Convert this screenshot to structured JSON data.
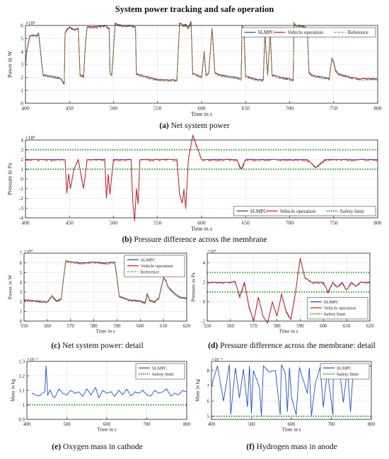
{
  "figure_title": "System power tracking and safe operation",
  "colors": {
    "slmpc": "#1f4fbf",
    "vehicle": "#e31a1c",
    "reference": "#4daf4a",
    "safety": "#2ca02c"
  },
  "captions": [
    {
      "label": "(a)",
      "text": "Net system power"
    },
    {
      "label": "(b)",
      "text": "Pressure difference across the membrane"
    },
    {
      "label": "(c)",
      "text": "Net system power: detail"
    },
    {
      "label": "(d)",
      "text": "Pressure difference across the membrane: detail"
    },
    {
      "label": "(e)",
      "text": "Oxygen mass in cathode"
    },
    {
      "label": "(f)",
      "text": "Hydrogen mass in anode"
    }
  ],
  "chart_data": [
    {
      "id": "a",
      "type": "line",
      "xlabel": "Time in s",
      "ylabel": "Power in W",
      "y_exponent": "×10⁴",
      "xlim": [
        400,
        800
      ],
      "ylim": [
        0,
        6
      ],
      "xticks": [
        400,
        450,
        500,
        550,
        600,
        650,
        700,
        750,
        800
      ],
      "yticks": [
        0,
        1,
        2,
        3,
        4,
        5,
        6
      ],
      "legend": {
        "position": "top-right",
        "orientation": "horizontal"
      },
      "series": [
        {
          "name": "SLMPC",
          "style": "solid"
        },
        {
          "name": "Vehicle operation",
          "style": "solid"
        },
        {
          "name": "Reference",
          "style": "dashed"
        }
      ],
      "x": [
        400,
        402,
        405,
        408,
        412,
        415,
        420,
        430,
        440,
        444,
        445,
        447,
        450,
        455,
        460,
        462,
        466,
        468,
        470,
        480,
        490,
        495,
        496,
        498,
        502,
        504,
        510,
        520,
        525,
        526,
        530,
        535,
        545,
        560,
        572,
        575,
        580,
        582,
        585,
        588,
        590,
        595,
        600,
        603,
        605,
        608,
        612,
        615,
        620,
        630,
        640,
        645,
        646,
        648,
        650,
        655,
        660,
        670,
        672,
        675,
        678,
        680,
        690,
        700,
        704,
        705,
        707,
        715,
        720,
        722,
        725,
        730,
        740,
        745,
        748,
        750,
        752,
        755,
        760,
        770,
        780,
        790,
        800
      ],
      "values": [
        3.0,
        4.3,
        5.2,
        5.3,
        5.2,
        5.4,
        2.2,
        2.1,
        1.95,
        1.5,
        5.4,
        5.7,
        5.9,
        5.7,
        5.8,
        2.2,
        2.1,
        4.5,
        5.9,
        5.9,
        6.0,
        5.8,
        2.3,
        2.2,
        6.2,
        6.1,
        6.0,
        6.0,
        5.9,
        2.3,
        2.2,
        2.1,
        1.9,
        1.8,
        1.8,
        6.2,
        6.0,
        6.1,
        5.8,
        6.3,
        2.3,
        2.2,
        2.0,
        4.0,
        2.2,
        2.3,
        5.8,
        2.4,
        2.2,
        2.1,
        2.0,
        1.9,
        6.0,
        5.8,
        2.1,
        2.0,
        1.9,
        1.8,
        5.4,
        2.2,
        5.4,
        2.2,
        2.0,
        1.9,
        1.8,
        6.2,
        6.0,
        6.0,
        5.8,
        2.4,
        2.2,
        2.1,
        2.0,
        1.9,
        3.5,
        3.2,
        2.6,
        2.3,
        2.2,
        2.0,
        1.9,
        1.9,
        1.9
      ]
    },
    {
      "id": "b",
      "type": "line",
      "xlabel": "Time in s",
      "ylabel": "Pressure in Pa",
      "y_exponent": "×10⁴",
      "xlim": [
        400,
        800
      ],
      "ylim": [
        -4,
        4
      ],
      "xticks": [
        400,
        450,
        500,
        550,
        600,
        650,
        700,
        750,
        800
      ],
      "yticks": [
        -4,
        -3,
        -2,
        -1,
        0,
        1,
        2,
        3,
        4
      ],
      "safety_limit": [
        1,
        3
      ],
      "legend": {
        "position": "bottom-right",
        "orientation": "horizontal"
      },
      "series": [
        {
          "name": "SLMPC",
          "style": "solid"
        },
        {
          "name": "Vehicle operation",
          "style": "solid"
        },
        {
          "name": "Safety limit",
          "style": "dotted"
        }
      ],
      "x": [
        400,
        415,
        445,
        447,
        449,
        451,
        455,
        460,
        466,
        470,
        480,
        490,
        492,
        494,
        496,
        500,
        520,
        522,
        524,
        526,
        528,
        530,
        540,
        550,
        560,
        572,
        575,
        578,
        580,
        582,
        585,
        588,
        590,
        600,
        620,
        640,
        645,
        650,
        670,
        690,
        700,
        720,
        730,
        740,
        750,
        770,
        800
      ],
      "values": [
        2.0,
        2.0,
        2.0,
        -1.5,
        0.5,
        -1.0,
        1.0,
        2.0,
        -1.0,
        2.0,
        2.0,
        2.0,
        -2.0,
        0.5,
        -1.5,
        2.0,
        2.0,
        -2.5,
        -4.2,
        -1.0,
        -2.5,
        2.0,
        2.0,
        2.0,
        2.0,
        2.0,
        -1.5,
        -2.5,
        -1.0,
        -3.0,
        2.0,
        3.5,
        4.5,
        2.0,
        2.0,
        2.0,
        1.0,
        2.0,
        2.0,
        2.0,
        2.0,
        2.0,
        1.2,
        2.0,
        2.0,
        2.0,
        2.0
      ]
    },
    {
      "id": "c",
      "type": "line",
      "xlabel": "Time in s",
      "ylabel": "Power in W",
      "y_exponent": "×10⁴",
      "xlim": [
        550,
        620
      ],
      "ylim": [
        0,
        7
      ],
      "xticks": [
        550,
        560,
        570,
        580,
        590,
        600,
        610,
        620
      ],
      "yticks": [
        0,
        1,
        2,
        3,
        4,
        5,
        6,
        7
      ],
      "legend": {
        "position": "top-right",
        "orientation": "vertical"
      },
      "series": [
        {
          "name": "SLMPC",
          "style": "solid"
        },
        {
          "name": "Vehicle operation",
          "style": "solid"
        },
        {
          "name": "Reference",
          "style": "dashed"
        }
      ],
      "x": [
        550,
        555,
        560,
        562,
        564,
        566,
        567,
        568,
        570,
        575,
        580,
        585,
        589,
        590,
        591,
        593,
        595,
        600,
        602,
        603,
        604,
        606,
        608,
        610,
        611,
        612,
        613,
        615,
        617,
        620
      ],
      "values": [
        2.2,
        2.1,
        2.0,
        2.6,
        2.1,
        2.3,
        4.5,
        6.2,
        6.1,
        6.0,
        6.1,
        6.0,
        6.1,
        4.5,
        2.6,
        2.4,
        2.2,
        2.1,
        1.9,
        2.8,
        2.2,
        2.0,
        2.4,
        4.5,
        4.2,
        3.5,
        3.3,
        2.8,
        2.5,
        2.4
      ]
    },
    {
      "id": "d",
      "type": "line",
      "xlabel": "Time in s",
      "ylabel": "Pressure in Pa",
      "y_exponent": "×10⁴",
      "xlim": [
        550,
        620
      ],
      "ylim": [
        -2,
        5
      ],
      "xticks": [
        550,
        560,
        570,
        580,
        590,
        600,
        610,
        620
      ],
      "yticks": [
        -2,
        0,
        2,
        4
      ],
      "safety_limit": [
        1,
        3
      ],
      "legend": {
        "position": "bottom-right",
        "orientation": "vertical"
      },
      "series": [
        {
          "name": "SLMPC",
          "style": "solid"
        },
        {
          "name": "Vehicle operation",
          "style": "solid"
        },
        {
          "name": "Safety limit",
          "style": "dotted"
        }
      ],
      "x": [
        550,
        555,
        560,
        562,
        564,
        566,
        568,
        570,
        572,
        574,
        576,
        578,
        580,
        582,
        584,
        586,
        588,
        590,
        592,
        595,
        600,
        602,
        604,
        606,
        608,
        610,
        612,
        614,
        616,
        620
      ],
      "values": [
        2.0,
        2.0,
        2.0,
        2.1,
        0.5,
        2.0,
        -0.5,
        -2.0,
        0.5,
        -1.5,
        -2.2,
        0.0,
        -1.5,
        0.8,
        -1.0,
        -1.8,
        1.0,
        4.5,
        2.5,
        2.0,
        2.0,
        1.0,
        2.0,
        1.5,
        2.0,
        1.2,
        2.0,
        1.6,
        2.0,
        2.0
      ]
    },
    {
      "id": "e",
      "type": "line",
      "xlabel": "Time in s",
      "ylabel": "Mass in kg",
      "y_exponent": "×10⁻³",
      "xlim": [
        400,
        800
      ],
      "ylim": [
        0.9,
        1.3
      ],
      "xticks": [
        400,
        500,
        600,
        700,
        800
      ],
      "yticks": [
        0.9,
        1.0,
        1.1,
        1.2,
        1.3
      ],
      "safety_limit": [
        1.0
      ],
      "legend": {
        "position": "top-right",
        "orientation": "vertical"
      },
      "series": [
        {
          "name": "SLMPC",
          "style": "solid"
        },
        {
          "name": "Safety limit",
          "style": "dotted"
        }
      ],
      "x": [
        412,
        430,
        445,
        448,
        452,
        458,
        465,
        470,
        480,
        490,
        500,
        510,
        520,
        530,
        540,
        550,
        560,
        572,
        580,
        590,
        600,
        610,
        620,
        630,
        640,
        650,
        660,
        670,
        680,
        690,
        700,
        710,
        720,
        730,
        740,
        750,
        760,
        770,
        780,
        790,
        798
      ],
      "values": [
        1.08,
        1.06,
        1.09,
        1.27,
        1.07,
        1.1,
        1.06,
        1.05,
        1.11,
        1.08,
        1.07,
        1.1,
        1.08,
        1.09,
        1.06,
        1.11,
        1.07,
        1.12,
        1.05,
        1.1,
        1.08,
        1.09,
        1.06,
        1.1,
        1.07,
        1.11,
        1.06,
        1.09,
        1.08,
        1.1,
        1.07,
        1.06,
        1.1,
        1.08,
        1.09,
        1.11,
        1.06,
        1.08,
        1.07,
        1.1,
        1.09
      ]
    },
    {
      "id": "f",
      "type": "line",
      "xlabel": "Time in s",
      "ylabel": "Mass in kg",
      "y_exponent": "×10⁻⁴",
      "xlim": [
        400,
        800
      ],
      "ylim": [
        4.8,
        8.6
      ],
      "xticks": [
        400,
        500,
        600,
        700,
        800
      ],
      "yticks": [
        5,
        6,
        7,
        8
      ],
      "safety_limit": [
        5
      ],
      "legend": {
        "position": "top-right",
        "orientation": "vertical"
      },
      "series": [
        {
          "name": "SLMPC",
          "style": "solid"
        },
        {
          "name": "Safety limit",
          "style": "dotted"
        }
      ],
      "x": [
        400,
        415,
        430,
        445,
        448,
        460,
        470,
        480,
        490,
        495,
        500,
        505,
        520,
        525,
        530,
        545,
        560,
        572,
        575,
        585,
        590,
        595,
        600,
        612,
        620,
        640,
        645,
        650,
        660,
        672,
        680,
        690,
        704,
        705,
        720,
        730,
        740,
        748,
        755,
        770,
        790,
        800
      ],
      "values": [
        7.0,
        8.3,
        6.0,
        8.4,
        5.1,
        8.2,
        6.2,
        8.1,
        5.6,
        8.3,
        5.2,
        8.0,
        6.9,
        5.0,
        8.3,
        7.9,
        8.0,
        5.1,
        8.4,
        7.8,
        5.3,
        8.2,
        6.3,
        5.1,
        8.2,
        6.5,
        8.2,
        5.0,
        7.2,
        8.2,
        5.6,
        8.0,
        5.1,
        8.3,
        8.2,
        5.9,
        8.1,
        5.3,
        8.2,
        7.5,
        8.3,
        8.3
      ]
    }
  ]
}
